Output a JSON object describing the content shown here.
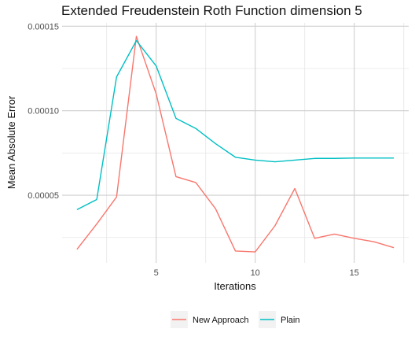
{
  "chart_data": {
    "type": "line",
    "title": "Extended Freudenstein Roth Function dimension 5",
    "xlabel": "Iterations",
    "ylabel": "Mean Absolute Error",
    "xlim": [
      0.25,
      17.75
    ],
    "ylim": [
      1e-05,
      0.000152
    ],
    "x_ticks": [
      5,
      10,
      15
    ],
    "x_tick_labels": [
      "5",
      "10",
      "15"
    ],
    "y_ticks": [
      5e-05,
      0.0001,
      0.00015
    ],
    "y_tick_labels": [
      "0.00005",
      "0.00010",
      "0.00015"
    ],
    "grid": true,
    "legend_position": "bottom",
    "x": [
      1,
      2,
      3,
      4,
      5,
      6,
      7,
      8,
      9,
      10,
      11,
      12,
      13,
      14,
      15,
      16,
      17
    ],
    "series": [
      {
        "name": "New Approach",
        "color": "#F8766D",
        "values": [
          1.8e-05,
          3.3e-05,
          4.9e-05,
          0.000144,
          0.00011,
          6.1e-05,
          5.75e-05,
          4.2e-05,
          1.7e-05,
          1.65e-05,
          3.2e-05,
          5.4e-05,
          2.45e-05,
          2.7e-05,
          2.45e-05,
          2.25e-05,
          1.9e-05
        ]
      },
      {
        "name": "Plain",
        "color": "#00BFC4",
        "values": [
          4.15e-05,
          4.75e-05,
          0.00012,
          0.0001415,
          0.0001265,
          9.55e-05,
          8.95e-05,
          8.05e-05,
          7.25e-05,
          7.08e-05,
          6.98e-05,
          7.08e-05,
          7.18e-05,
          7.18e-05,
          7.2e-05,
          7.2e-05,
          7.2e-05
        ]
      }
    ]
  }
}
